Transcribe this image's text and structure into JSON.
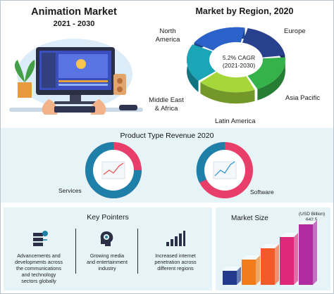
{
  "header": {
    "title": "Animation Market",
    "years": "2021 - 2030"
  },
  "region_chart": {
    "title": "Market by Region, 2020",
    "center_line1": "5.2% CAGR",
    "center_line2": "(2021-2030)",
    "regions": [
      "North America",
      "Europe",
      "Asia Pacific",
      "Latin America",
      "Middle East & Africa"
    ],
    "label_lines": {
      "north_america": [
        "North",
        "America"
      ],
      "europe": "Europe",
      "asia_pacific": "Asia Pacific",
      "latin_america": "Latin America",
      "mea": [
        "Middle East",
        "& Africa"
      ]
    },
    "colors": [
      "#2a62c9",
      "#27418f",
      "#36b24a",
      "#a6d73a",
      "#1aa6b7"
    ]
  },
  "product_revenue": {
    "title": "Product Type Revenue 2020",
    "items": [
      {
        "label": "Services",
        "ring_colors": [
          "#e83e6a",
          "#1e7fa8"
        ]
      },
      {
        "label": "Software",
        "ring_colors": [
          "#e83e6a",
          "#1e7fa8"
        ]
      }
    ]
  },
  "key_pointers": {
    "title": "Key Pointers",
    "items": [
      {
        "icon": "network-cloud-icon",
        "lines": [
          "Advancements and",
          "developments across",
          "the communications",
          "and technology",
          "sectors globally"
        ]
      },
      {
        "icon": "idea-head-icon",
        "lines": [
          "Growing media",
          "and entertainment",
          "industry"
        ]
      },
      {
        "icon": "signal-bars-icon",
        "lines": [
          "Increased internet",
          "penetration across",
          "different regions"
        ]
      }
    ]
  },
  "market_size": {
    "title": "Market Size",
    "unit_label": "(USD Billion)",
    "top_value": "642.5"
  },
  "chart_data": [
    {
      "type": "pie",
      "title": "Market by Region, 2020",
      "categories": [
        "North America",
        "Europe",
        "Asia Pacific",
        "Latin America",
        "Middle East & Africa"
      ],
      "annotations": [
        "5.2% CAGR",
        "(2021-2030)"
      ]
    },
    {
      "type": "bar",
      "title": "Market Size",
      "ylabel": "(USD Billion)",
      "values": [
        null,
        null,
        null,
        null,
        642.5
      ],
      "annotations": [
        "642.5"
      ]
    }
  ],
  "colors": {
    "accent_blue": "#1e7fa8",
    "accent_pink": "#e83e6a",
    "panel_bg": "#e6f4f8"
  }
}
